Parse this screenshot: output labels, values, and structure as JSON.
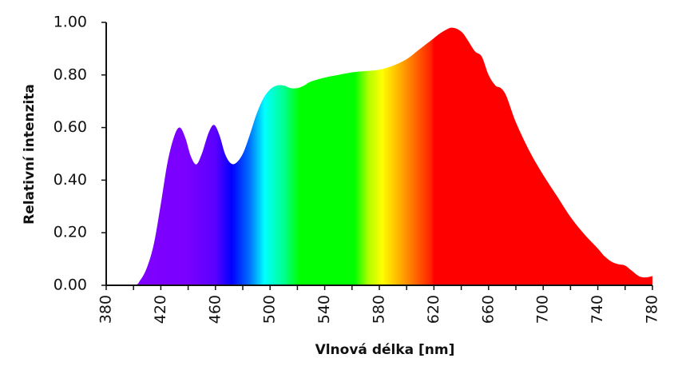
{
  "chart_data": {
    "type": "area",
    "title": "",
    "xlabel": "Vlnová délka [nm]",
    "ylabel": "Relativní intenzita",
    "xlim": [
      380,
      780
    ],
    "ylim": [
      0,
      1.0
    ],
    "x_ticks": [
      "380",
      "420",
      "460",
      "500",
      "540",
      "580",
      "620",
      "660",
      "700",
      "740",
      "780"
    ],
    "y_ticks": [
      "0.00",
      "0.20",
      "0.40",
      "0.60",
      "0.80",
      "1.00"
    ],
    "grid": false,
    "legend": null,
    "fill": "spectral gradient (wavelength-colored)",
    "series": [
      {
        "name": "Relativní intenzita",
        "x": [
          380,
          400,
          405,
          410,
          415,
          420,
          425,
          430,
          434,
          438,
          442,
          446,
          450,
          455,
          459,
          463,
          467,
          471,
          475,
          480,
          485,
          490,
          495,
          500,
          505,
          510,
          515,
          520,
          525,
          530,
          540,
          550,
          560,
          570,
          580,
          590,
          600,
          610,
          620,
          625,
          630,
          633,
          637,
          641,
          645,
          650,
          655,
          660,
          665,
          669,
          673,
          680,
          690,
          700,
          710,
          720,
          730,
          740,
          745,
          750,
          755,
          760,
          765,
          770,
          775,
          780
        ],
        "values": [
          0.0,
          0.0,
          0.02,
          0.07,
          0.16,
          0.31,
          0.47,
          0.57,
          0.6,
          0.56,
          0.49,
          0.46,
          0.5,
          0.58,
          0.61,
          0.57,
          0.5,
          0.465,
          0.465,
          0.5,
          0.57,
          0.65,
          0.71,
          0.745,
          0.76,
          0.76,
          0.75,
          0.75,
          0.76,
          0.775,
          0.79,
          0.8,
          0.81,
          0.815,
          0.82,
          0.835,
          0.86,
          0.9,
          0.94,
          0.96,
          0.975,
          0.98,
          0.975,
          0.96,
          0.93,
          0.89,
          0.87,
          0.8,
          0.76,
          0.75,
          0.72,
          0.62,
          0.51,
          0.42,
          0.34,
          0.26,
          0.195,
          0.14,
          0.11,
          0.09,
          0.08,
          0.075,
          0.055,
          0.035,
          0.03,
          0.035
        ]
      }
    ],
    "color_stops": [
      {
        "nm": 400,
        "color": "#8000ff"
      },
      {
        "nm": 440,
        "color": "#7a00ff"
      },
      {
        "nm": 460,
        "color": "#5a00ff"
      },
      {
        "nm": 472,
        "color": "#0000ff"
      },
      {
        "nm": 485,
        "color": "#0070ff"
      },
      {
        "nm": 496,
        "color": "#00ffff"
      },
      {
        "nm": 510,
        "color": "#00ff90"
      },
      {
        "nm": 522,
        "color": "#00ff00"
      },
      {
        "nm": 562,
        "color": "#00ff00"
      },
      {
        "nm": 572,
        "color": "#b0ff00"
      },
      {
        "nm": 582,
        "color": "#ffff00"
      },
      {
        "nm": 600,
        "color": "#ff9000"
      },
      {
        "nm": 618,
        "color": "#ff2000"
      },
      {
        "nm": 620,
        "color": "#ff0000"
      },
      {
        "nm": 780,
        "color": "#ff0000"
      }
    ]
  }
}
